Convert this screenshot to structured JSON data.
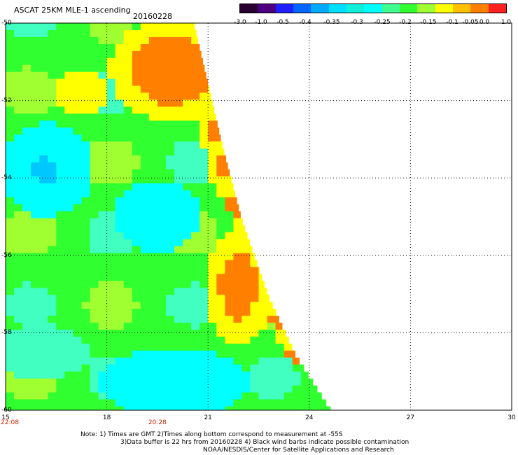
{
  "header": {
    "title": "ASCAT 25KM MLE-1 ascending",
    "date": "20160228"
  },
  "colorbar": {
    "colors": [
      "#2a0030",
      "#4a0080",
      "#2020ff",
      "#0066ff",
      "#00aaff",
      "#00e0ff",
      "#10f0d8",
      "#00ffff",
      "#40ff90",
      "#30ff30",
      "#a0ff30",
      "#ffff00",
      "#ffc000",
      "#ff8000",
      "#ff2020"
    ],
    "labels": [
      "-3.0",
      "-1.0",
      "-0.5",
      "-0.4",
      "-0.35",
      "-0.3",
      "-0.25",
      "-0.2",
      "-0.15",
      "-0.1",
      "-0.05",
      "0.0",
      "1.0"
    ]
  },
  "axes": {
    "y_ticks": [
      "-50",
      "-52",
      "-54",
      "-56",
      "-58",
      "-60"
    ],
    "x_ticks": [
      "15",
      "18",
      "21",
      "24",
      "27",
      "30"
    ],
    "time_labels": [
      "22:08",
      "20:28"
    ]
  },
  "notes": {
    "line1": "Note: 1) Times are GMT 2)Times along bottom correspond to measurement at -55S",
    "line2": "3)Data buffer is 22 hrs from 20160228 4) Black wind barbs indicate possible contamination",
    "line3": "NOAA/NESDIS/Center for Satellite Applications and Research"
  },
  "map_data": {
    "lon_range": [
      15,
      30
    ],
    "lat_range": [
      -60,
      -50
    ],
    "swath_edge_lon_at_lat": [
      [
        -50,
        20.6
      ],
      [
        -51.5,
        21.0
      ],
      [
        -53,
        21.4
      ],
      [
        -55,
        22.0
      ],
      [
        -57,
        22.8
      ],
      [
        -58.5,
        23.6
      ],
      [
        -60,
        24.7
      ]
    ],
    "field_colors": {
      "cyan": "#00ffff",
      "aqua": "#40ffc0",
      "green": "#30ff30",
      "lime": "#a0ff30",
      "yellow": "#ffff00",
      "orange": "#ff8000",
      "blue": "#00c8ff"
    }
  }
}
